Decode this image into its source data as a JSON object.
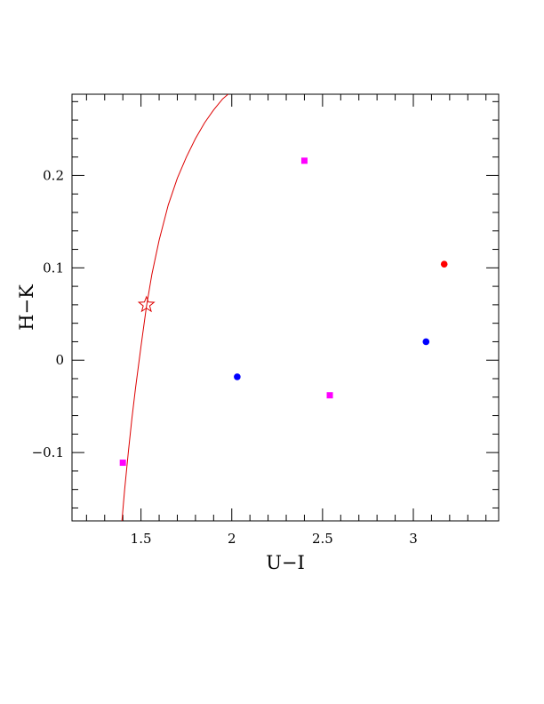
{
  "chart_data": {
    "type": "scatter",
    "xlabel": "U−I",
    "ylabel": "H−K",
    "xlim": [
      1.12,
      3.47
    ],
    "ylim": [
      -0.174,
      0.288
    ],
    "x_ticks": [
      1.5,
      2,
      2.5,
      3
    ],
    "x_tick_labels": [
      "1.5",
      "2",
      "2.5",
      "3"
    ],
    "y_ticks": [
      -0.1,
      0,
      0.1,
      0.2
    ],
    "y_tick_labels": [
      "−0.1",
      "0",
      "0.1",
      "0.2"
    ],
    "x_minor_step": 0.1,
    "y_minor_step": 0.02,
    "grid": false,
    "legend": "none",
    "colors": {
      "curve": "#dd0000",
      "star": "#dd0000",
      "magenta": "#ff00ff",
      "blue": "#0000ff",
      "red": "#ff0000"
    },
    "series": [
      {
        "marker": "square",
        "color": "#ff00ff",
        "points": [
          [
            1.4,
            -0.111
          ],
          [
            2.4,
            0.216
          ],
          [
            2.54,
            -0.038
          ]
        ]
      },
      {
        "marker": "circle",
        "color": "#0000ff",
        "points": [
          [
            2.03,
            -0.018
          ],
          [
            3.07,
            0.02
          ]
        ]
      },
      {
        "marker": "circle",
        "color": "#ff0000",
        "points": [
          [
            3.17,
            0.104
          ]
        ]
      },
      {
        "marker": "star",
        "color": "#dd0000",
        "points": [
          [
            1.53,
            0.06
          ]
        ]
      }
    ],
    "curve": {
      "type": "line",
      "color": "#dd0000",
      "points": [
        [
          1.395,
          -0.174
        ],
        [
          1.41,
          -0.14
        ],
        [
          1.43,
          -0.1
        ],
        [
          1.45,
          -0.063
        ],
        [
          1.47,
          -0.03
        ],
        [
          1.5,
          0.015
        ],
        [
          1.53,
          0.058
        ],
        [
          1.56,
          0.093
        ],
        [
          1.6,
          0.13
        ],
        [
          1.65,
          0.168
        ],
        [
          1.7,
          0.197
        ],
        [
          1.75,
          0.22
        ],
        [
          1.8,
          0.24
        ],
        [
          1.85,
          0.257
        ],
        [
          1.9,
          0.271
        ],
        [
          1.95,
          0.283
        ],
        [
          1.98,
          0.288
        ]
      ]
    }
  }
}
